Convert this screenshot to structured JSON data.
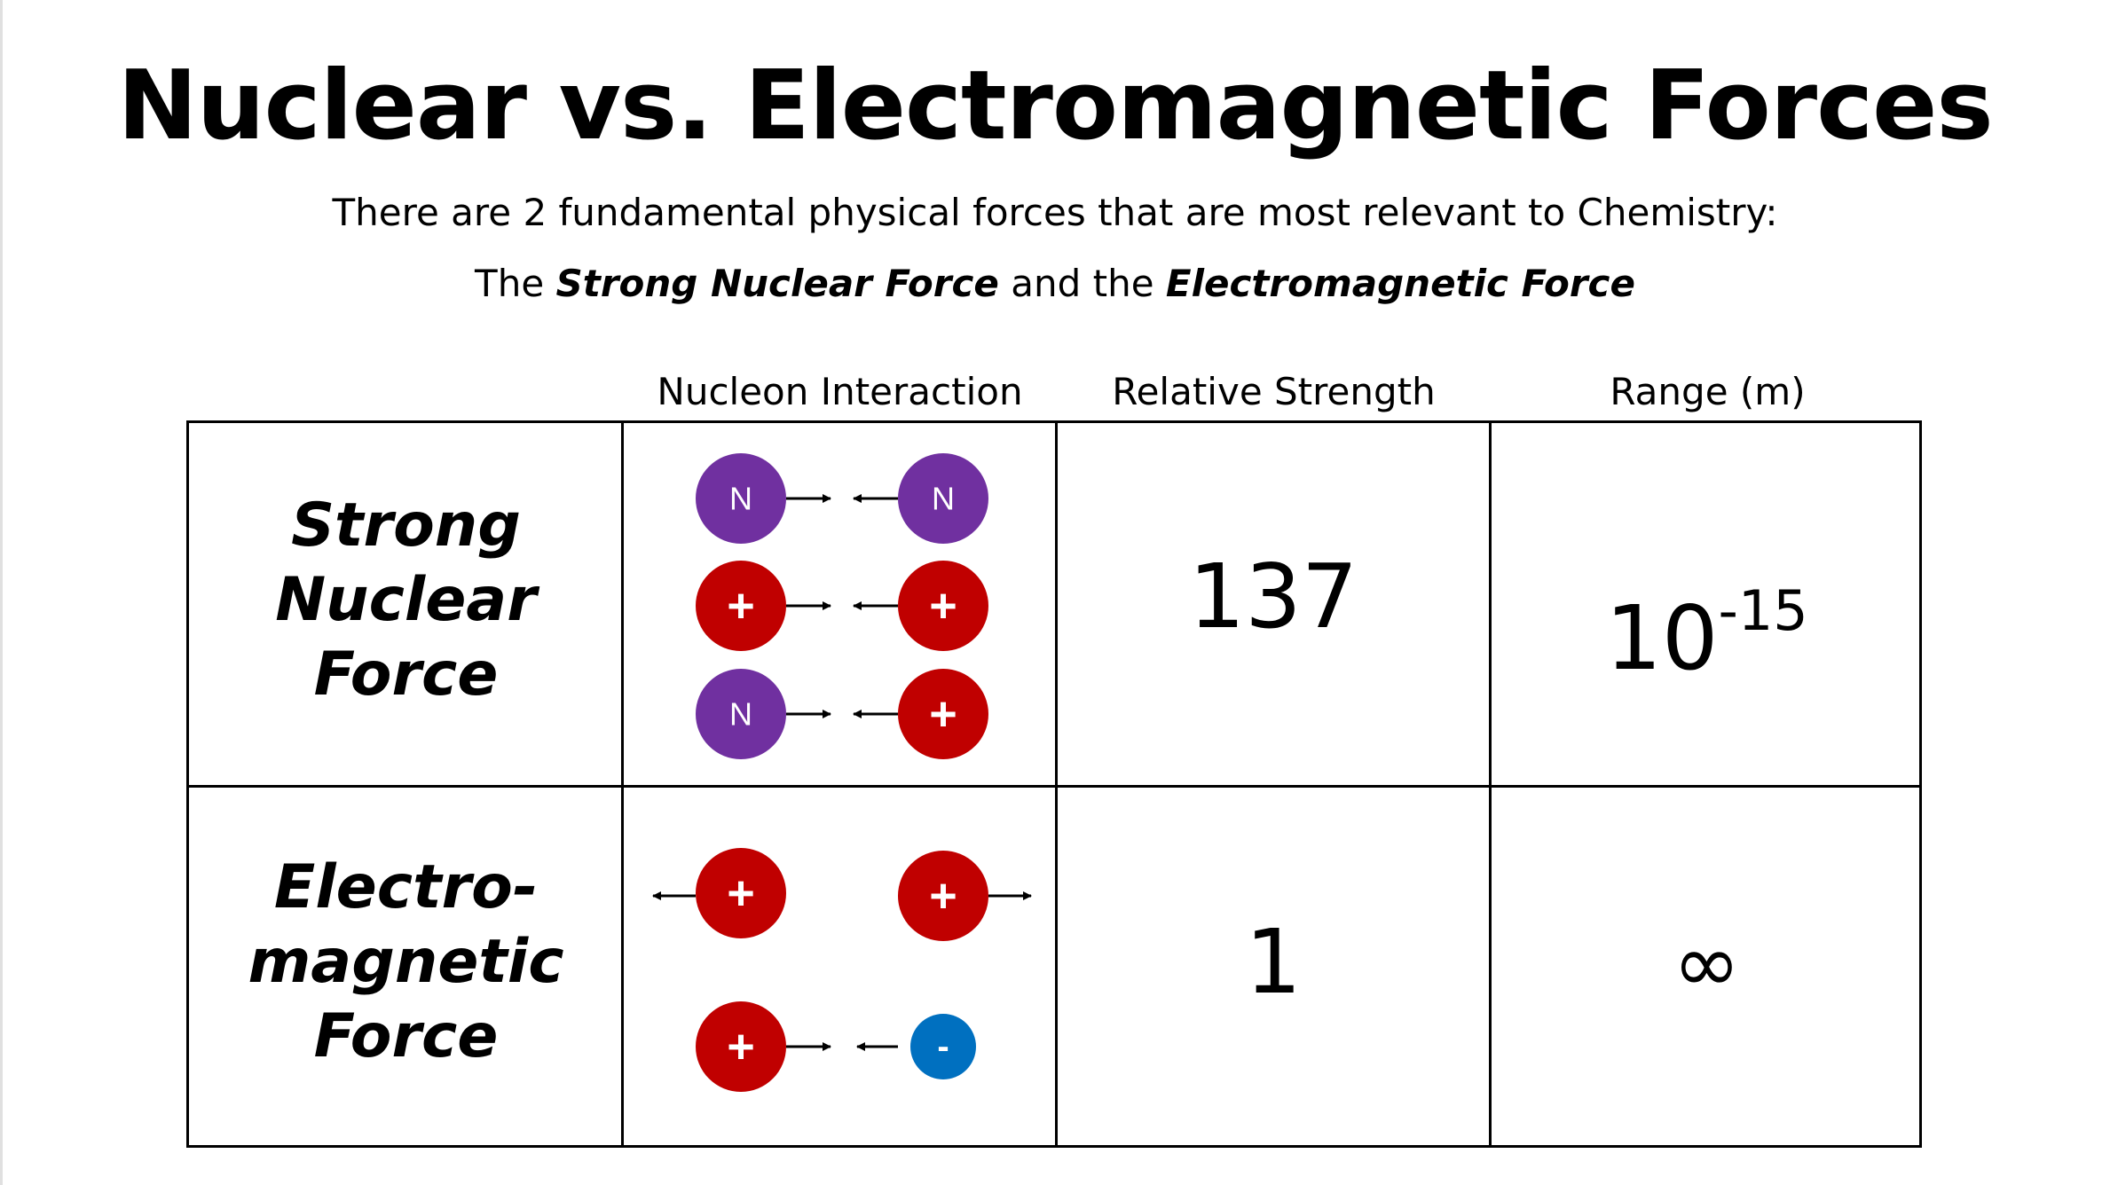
{
  "title": "Nuclear vs. Electromagnetic Forces",
  "subtitle_line1": "There are 2 fundamental physical forces that are most relevant to Chemistry:",
  "subtitle_line2": {
    "pre": "The ",
    "strong": "Strong Nuclear Force",
    "mid": " and the ",
    "em": "Electromagnetic Force"
  },
  "columns": {
    "interaction": "Nucleon Interaction",
    "strength": "Relative Strength",
    "range": "Range (m)"
  },
  "rows": [
    {
      "label": [
        "Strong",
        "Nuclear",
        "Force"
      ],
      "strength": "137",
      "range_base": "10",
      "range_exp": "-15"
    },
    {
      "label": [
        "Electro-",
        "magnetic",
        "Force"
      ],
      "strength": "1",
      "range": "∞"
    }
  ],
  "particles": {
    "neutron_label": "N",
    "proton_label": "+",
    "electron_label": "-"
  },
  "colors": {
    "neutron": "#7030a0",
    "proton": "#c00000",
    "electron": "#0070c0"
  }
}
